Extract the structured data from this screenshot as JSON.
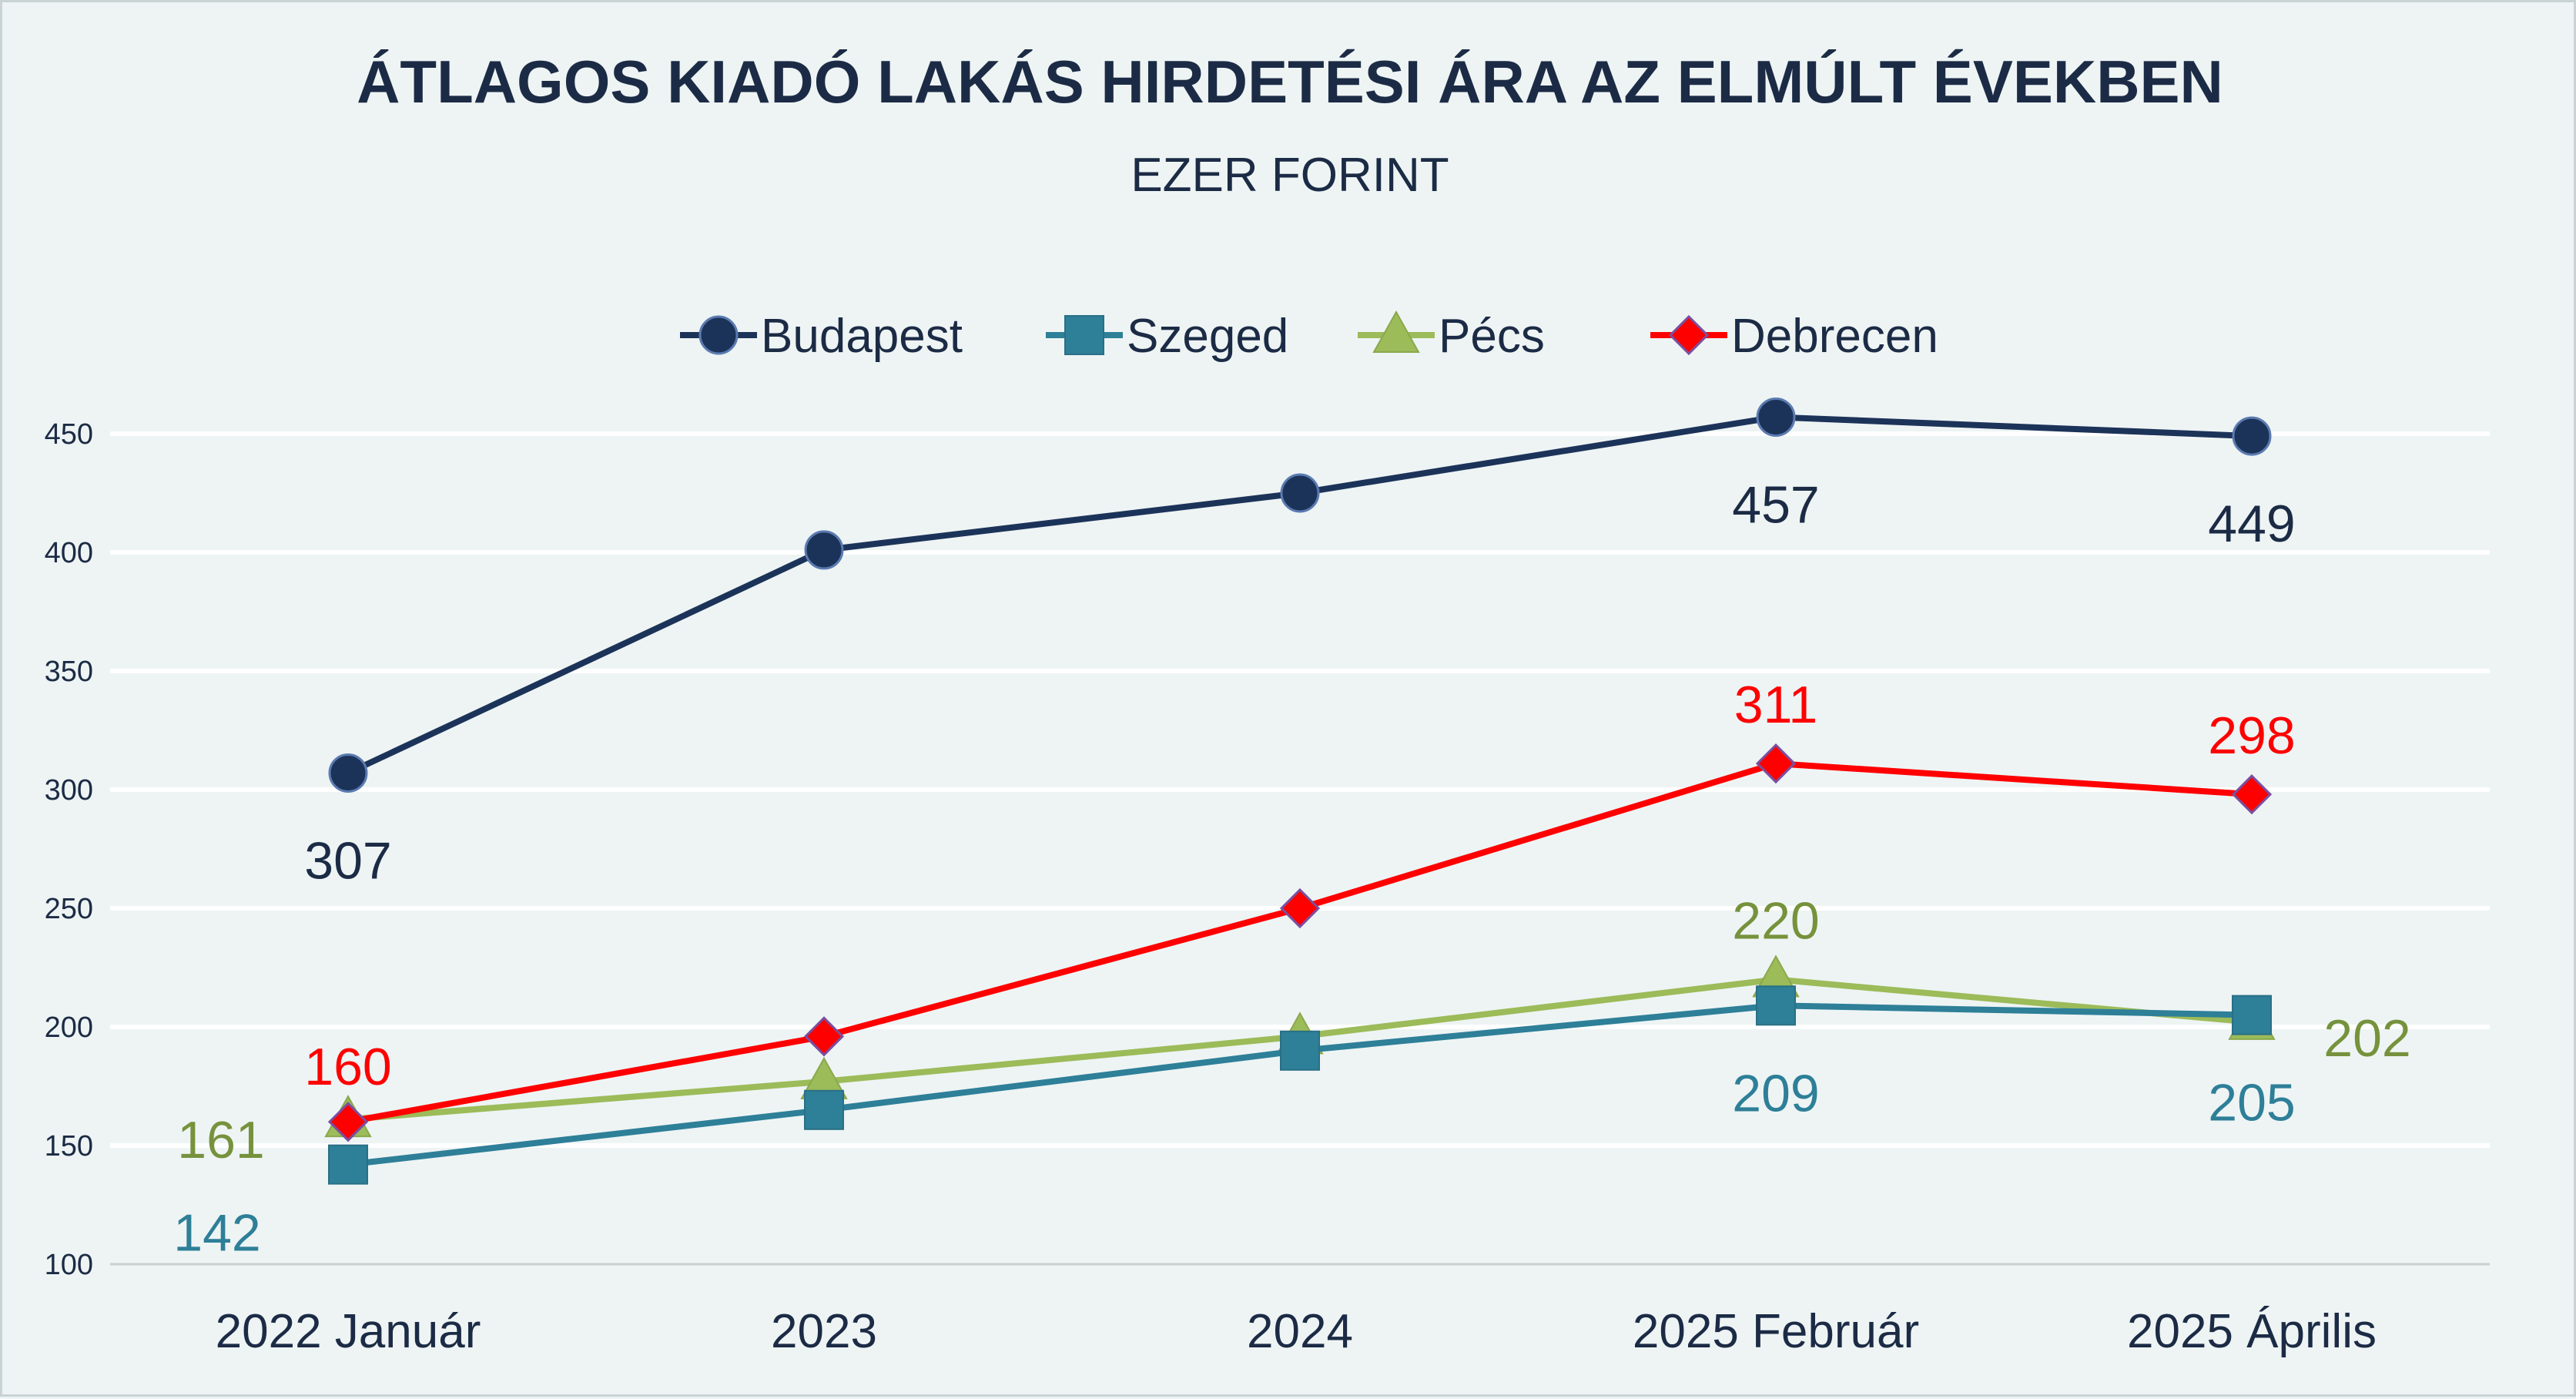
{
  "chart_data": {
    "type": "line",
    "title": "ÁTLAGOS  KIADÓ LAKÁS HIRDETÉSI ÁRA AZ ELMÚLT ÉVEKBEN",
    "subtitle": "EZER FORINT",
    "xlabel": "",
    "ylabel": "",
    "categories": [
      "2022 Január",
      "2023",
      "2024",
      "2025 Február",
      "2025 Április"
    ],
    "ylim": [
      100,
      450
    ],
    "yticks": [
      "100",
      "150",
      "200",
      "250",
      "300",
      "350",
      "400",
      "450"
    ],
    "grid": true,
    "legend_position": "top-center",
    "series": [
      {
        "name": "Budapest",
        "color": "#1c3359",
        "marker": "circle",
        "values": [
          307,
          401,
          425,
          457,
          449
        ],
        "data_labels": [
          "307",
          "",
          "",
          "457",
          "449"
        ],
        "label_color": "#1c2b45"
      },
      {
        "name": "Szeged",
        "color": "#2e7f98",
        "marker": "square",
        "values": [
          142,
          165,
          190,
          209,
          205
        ],
        "data_labels": [
          "142",
          "",
          "",
          "209",
          "205"
        ],
        "label_color": "#2e7f98"
      },
      {
        "name": "Pécs",
        "color": "#9cbb59",
        "marker": "triangle",
        "values": [
          161,
          177,
          196,
          220,
          202
        ],
        "data_labels": [
          "161",
          "",
          "",
          "220",
          "202"
        ],
        "label_color": "#76923c"
      },
      {
        "name": "Debrecen",
        "color": "#ff0000",
        "marker": "diamond",
        "values": [
          160,
          196,
          250,
          311,
          298
        ],
        "data_labels": [
          "160",
          "",
          "",
          "311",
          "298"
        ],
        "label_color": "#ff0000"
      }
    ]
  }
}
